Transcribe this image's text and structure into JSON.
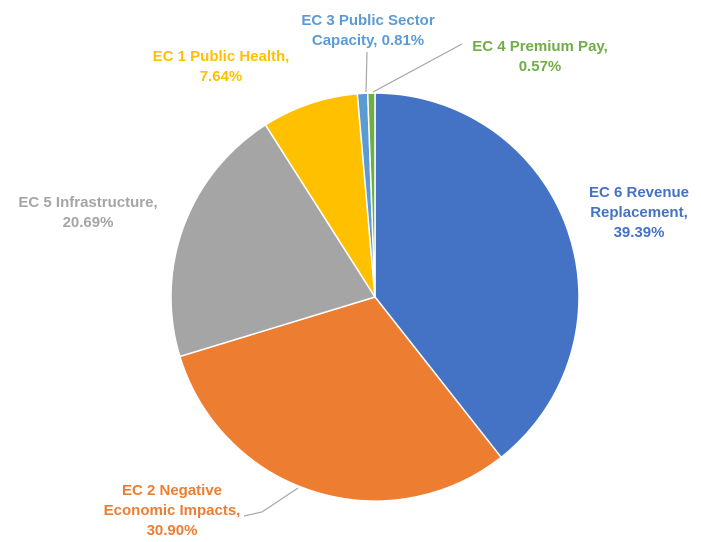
{
  "chart_data": {
    "type": "pie",
    "title": "",
    "slices": [
      {
        "category": "EC 6 Revenue Replacement",
        "value": 39.39,
        "label_lines": [
          "EC 6 Revenue",
          "Replacement,",
          "39.39%"
        ],
        "color": "#4472C4"
      },
      {
        "category": "EC 2 Negative Economic Impacts",
        "value": 30.9,
        "label_lines": [
          "EC 2 Negative",
          "Economic Impacts,",
          "30.90%"
        ],
        "color": "#ED7D31"
      },
      {
        "category": "EC 5 Infrastructure",
        "value": 20.69,
        "label_lines": [
          "EC 5 Infrastructure,",
          "20.69%"
        ],
        "color": "#A5A5A5"
      },
      {
        "category": "EC 1 Public Health",
        "value": 7.64,
        "label_lines": [
          "EC 1 Public Health,",
          "7.64%"
        ],
        "color": "#FFC000"
      },
      {
        "category": "EC 3 Public Sector Capacity",
        "value": 0.81,
        "label_lines": [
          "EC 3 Public Sector",
          "Capacity, 0.81%"
        ],
        "color": "#5B9BD5"
      },
      {
        "category": "EC 4 Premium Pay",
        "value": 0.57,
        "label_lines": [
          "EC 4 Premium Pay,",
          "0.57%"
        ],
        "color": "#70AD47"
      }
    ],
    "start": "12 o'clock",
    "direction": "clockwise",
    "legend": "none"
  }
}
